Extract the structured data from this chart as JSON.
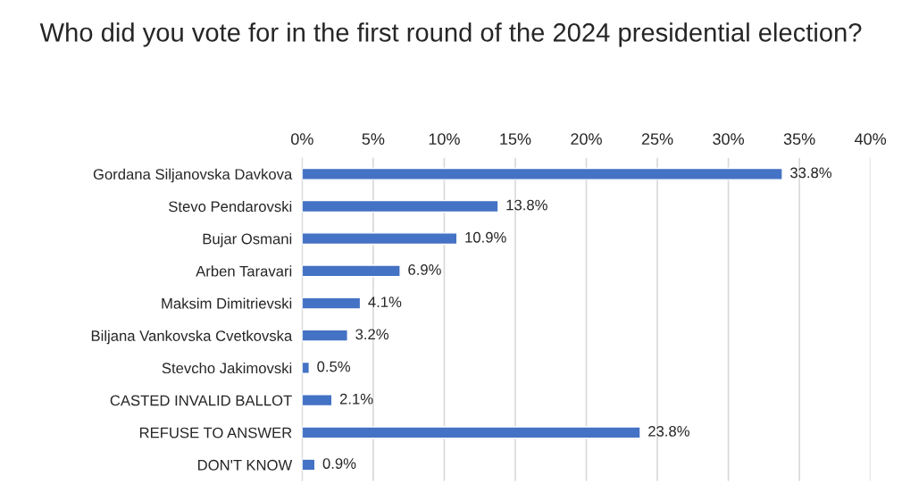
{
  "chart_data": {
    "type": "bar",
    "orientation": "horizontal",
    "title": "Who did you vote for in the first round of the 2024 presidential election?",
    "categories": [
      "Gordana Siljanovska Davkova",
      "Stevo Pendarovski",
      "Bujar Osmani",
      "Arben Taravari",
      "Maksim Dimitrievski",
      "Biljana Vankovska Cvetkovska",
      "Stevcho Jakimovski",
      "CASTED INVALID BALLOT",
      "REFUSE TO ANSWER",
      "DON'T KNOW"
    ],
    "values": [
      33.8,
      13.8,
      10.9,
      6.9,
      4.1,
      3.2,
      0.5,
      2.1,
      23.8,
      0.9
    ],
    "value_labels": [
      "33.8%",
      "13.8%",
      "10.9%",
      "6.9%",
      "4.1%",
      "3.2%",
      "0.5%",
      "2.1%",
      "23.8%",
      "0.9%"
    ],
    "color": "#4472c4",
    "xlim": [
      0,
      40
    ],
    "xticks": [
      {
        "value": 0,
        "label": "0%"
      },
      {
        "value": 5,
        "label": "5%"
      },
      {
        "value": 10,
        "label": "10%"
      },
      {
        "value": 15,
        "label": "15%"
      },
      {
        "value": 20,
        "label": "20%"
      },
      {
        "value": 25,
        "label": "25%"
      },
      {
        "value": 30,
        "label": "30%"
      },
      {
        "value": 35,
        "label": "35%"
      },
      {
        "value": 40,
        "label": "40%"
      }
    ],
    "grid": "x"
  }
}
